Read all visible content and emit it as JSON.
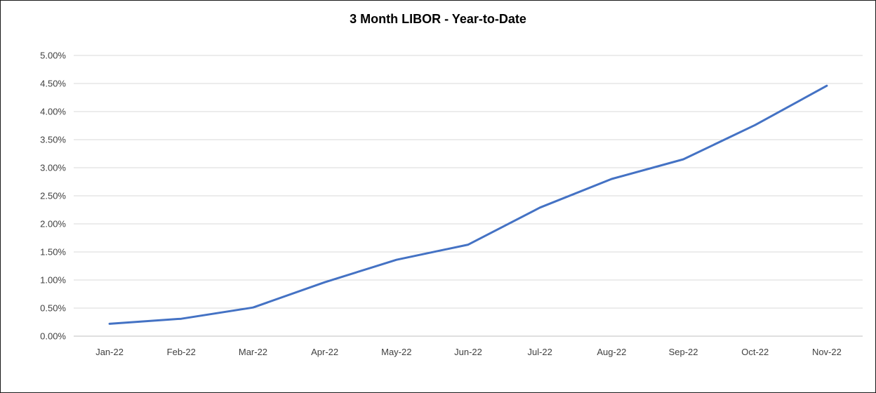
{
  "chart_data": {
    "type": "line",
    "title": "3 Month LIBOR - Year-to-Date",
    "xlabel": "",
    "ylabel": "",
    "categories": [
      "Jan-22",
      "Feb-22",
      "Mar-22",
      "Apr-22",
      "May-22",
      "Jun-22",
      "Jul-22",
      "Aug-22",
      "Sep-22",
      "Oct-22",
      "Nov-22"
    ],
    "series": [
      {
        "values": [
          0.22,
          0.31,
          0.51,
          0.96,
          1.36,
          1.63,
          2.29,
          2.8,
          3.15,
          3.76,
          4.46
        ]
      }
    ],
    "ylim": [
      0,
      5
    ],
    "yticks": [
      0,
      0.5,
      1,
      1.5,
      2,
      2.5,
      3,
      3.5,
      4,
      4.5,
      5
    ],
    "ytick_labels": [
      "0.00%",
      "0.50%",
      "1.00%",
      "1.50%",
      "2.00%",
      "2.50%",
      "3.00%",
      "3.50%",
      "4.00%",
      "4.50%",
      "5.00%"
    ],
    "grid": true,
    "legend": "none",
    "colors": {
      "line": "#4472C4",
      "grid": "#d9d9d9",
      "axis": "#bfbfbf"
    }
  }
}
